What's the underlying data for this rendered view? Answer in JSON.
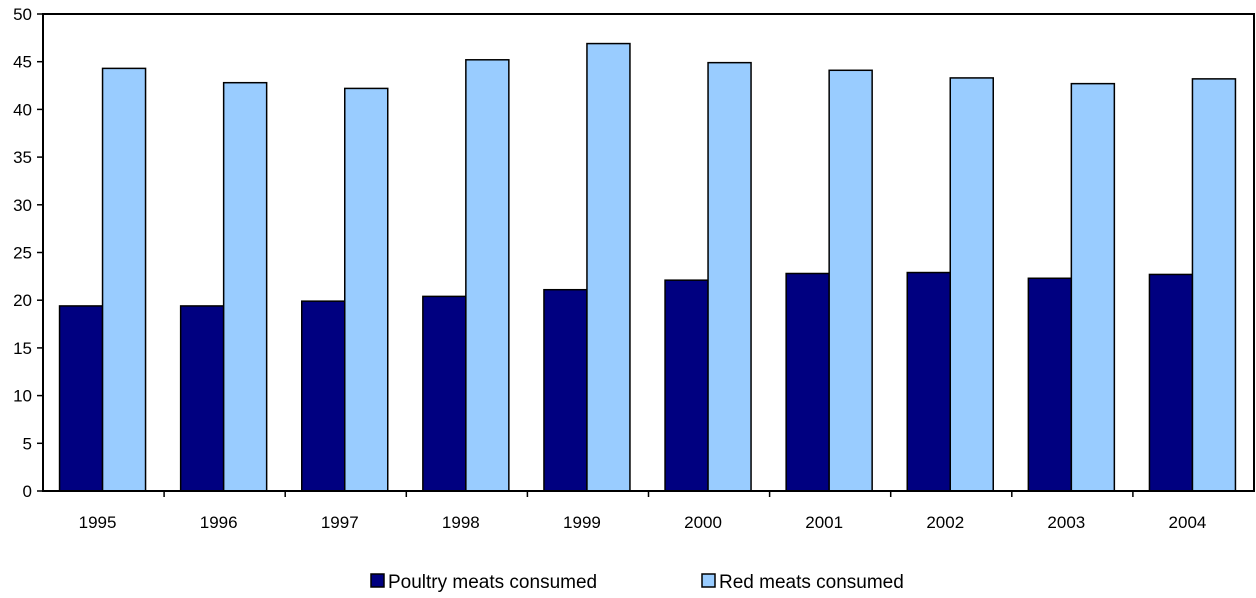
{
  "chart_data": {
    "type": "bar",
    "title": "",
    "xlabel": "",
    "ylabel": "",
    "categories": [
      "1995",
      "1996",
      "1997",
      "1998",
      "1999",
      "2000",
      "2001",
      "2002",
      "2003",
      "2004"
    ],
    "ylim": [
      0,
      50
    ],
    "yticks": [
      "0",
      "5",
      "10",
      "15",
      "20",
      "25",
      "30",
      "35",
      "40",
      "45",
      "50"
    ],
    "grid": false,
    "legend_position": "bottom-center",
    "series": [
      {
        "name": "Poultry meats consumed",
        "color": "#000080",
        "values": [
          19.4,
          19.4,
          19.9,
          20.4,
          21.1,
          22.1,
          22.8,
          22.9,
          22.3,
          22.7
        ]
      },
      {
        "name": "Red meats consumed",
        "color": "#99ccff",
        "values": [
          44.3,
          42.8,
          42.2,
          45.2,
          46.9,
          44.9,
          44.1,
          43.3,
          42.7,
          43.2
        ]
      }
    ]
  }
}
